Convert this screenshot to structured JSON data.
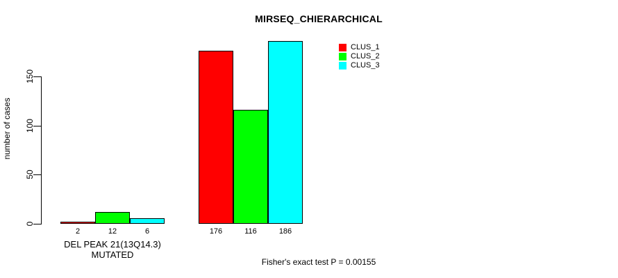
{
  "title": "MIRSEQ_CHIERARCHICAL",
  "y_axis": {
    "label": "number of cases",
    "ticks": [
      0,
      50,
      100,
      150
    ]
  },
  "x_axis": {
    "label": "DEL PEAK 21(13Q14.3) MUTATED"
  },
  "legend": [
    {
      "label": "CLUS_1",
      "color": "#ff0000"
    },
    {
      "label": "CLUS_2",
      "color": "#00ff00"
    },
    {
      "label": "CLUS_3",
      "color": "#00ffff"
    }
  ],
  "footer": "Fisher's exact test P = 0.00155",
  "chart_data": {
    "type": "bar",
    "title": "MIRSEQ_CHIERARCHICAL",
    "xlabel": "DEL PEAK 21(13Q14.3) MUTATED",
    "ylabel": "number of cases",
    "ylim": [
      0,
      186
    ],
    "axis_ticks": [
      0,
      50,
      100,
      150
    ],
    "grid": false,
    "legend_position": "top-right",
    "groups": [
      "DEL PEAK 21(13Q14.3) MUTATED",
      ""
    ],
    "series": [
      {
        "name": "CLUS_1",
        "color": "#ff0000",
        "values": [
          2,
          176
        ]
      },
      {
        "name": "CLUS_2",
        "color": "#00ff00",
        "values": [
          12,
          116
        ]
      },
      {
        "name": "CLUS_3",
        "color": "#00ffff",
        "values": [
          6,
          186
        ]
      }
    ],
    "bar_value_labels": [
      [
        2,
        12,
        6
      ],
      [
        176,
        116,
        186
      ]
    ],
    "annotation": "Fisher's exact test P = 0.00155"
  }
}
